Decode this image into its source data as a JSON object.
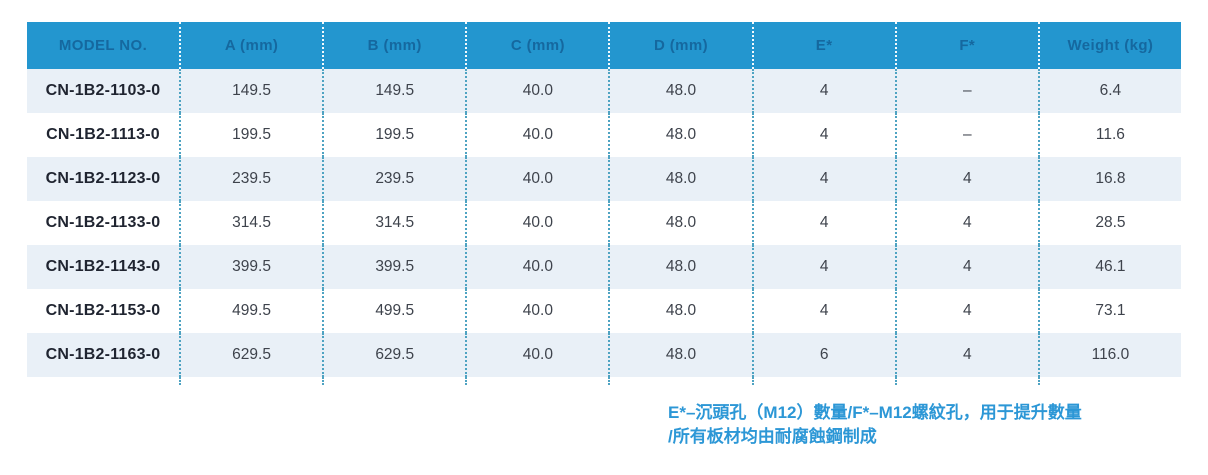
{
  "colors": {
    "header_bg": "#2396CF",
    "header_text": "#15689F",
    "row_alt_bg": "#E9F0F7",
    "row_bg": "#FFFFFF",
    "divider_body": "#4EA3C2",
    "divider_header": "#FFFFFF",
    "model_text": "#1F2430",
    "value_text": "#3E434C",
    "note_text": "#2C97D6"
  },
  "table": {
    "columns": [
      "MODEL NO.",
      "A (mm)",
      "B (mm)",
      "C (mm)",
      "D (mm)",
      "E*",
      "F*",
      "Weight (kg)"
    ],
    "rows": [
      {
        "model": "CN-1B2-1103-0",
        "values": [
          "149.5",
          "149.5",
          "40.0",
          "48.0",
          "4",
          "–",
          "6.4"
        ]
      },
      {
        "model": "CN-1B2-1113-0",
        "values": [
          "199.5",
          "199.5",
          "40.0",
          "48.0",
          "4",
          "–",
          "11.6"
        ]
      },
      {
        "model": "CN-1B2-1123-0",
        "values": [
          "239.5",
          "239.5",
          "40.0",
          "48.0",
          "4",
          "4",
          "16.8"
        ]
      },
      {
        "model": "CN-1B2-1133-0",
        "values": [
          "314.5",
          "314.5",
          "40.0",
          "48.0",
          "4",
          "4",
          "28.5"
        ]
      },
      {
        "model": "CN-1B2-1143-0",
        "values": [
          "399.5",
          "399.5",
          "40.0",
          "48.0",
          "4",
          "4",
          "46.1"
        ]
      },
      {
        "model": "CN-1B2-1153-0",
        "values": [
          "499.5",
          "499.5",
          "40.0",
          "48.0",
          "4",
          "4",
          "73.1"
        ]
      },
      {
        "model": "CN-1B2-1163-0",
        "values": [
          "629.5",
          "629.5",
          "40.0",
          "48.0",
          "6",
          "4",
          "116.0"
        ]
      }
    ]
  },
  "note": {
    "e_label": "E*",
    "e_text": "–沉頭孔（M12）數量/",
    "f_label": "F*",
    "f_text": "–M12螺紋孔，用于提升數量",
    "line2": "/所有板材均由耐腐蝕鋼制成"
  }
}
